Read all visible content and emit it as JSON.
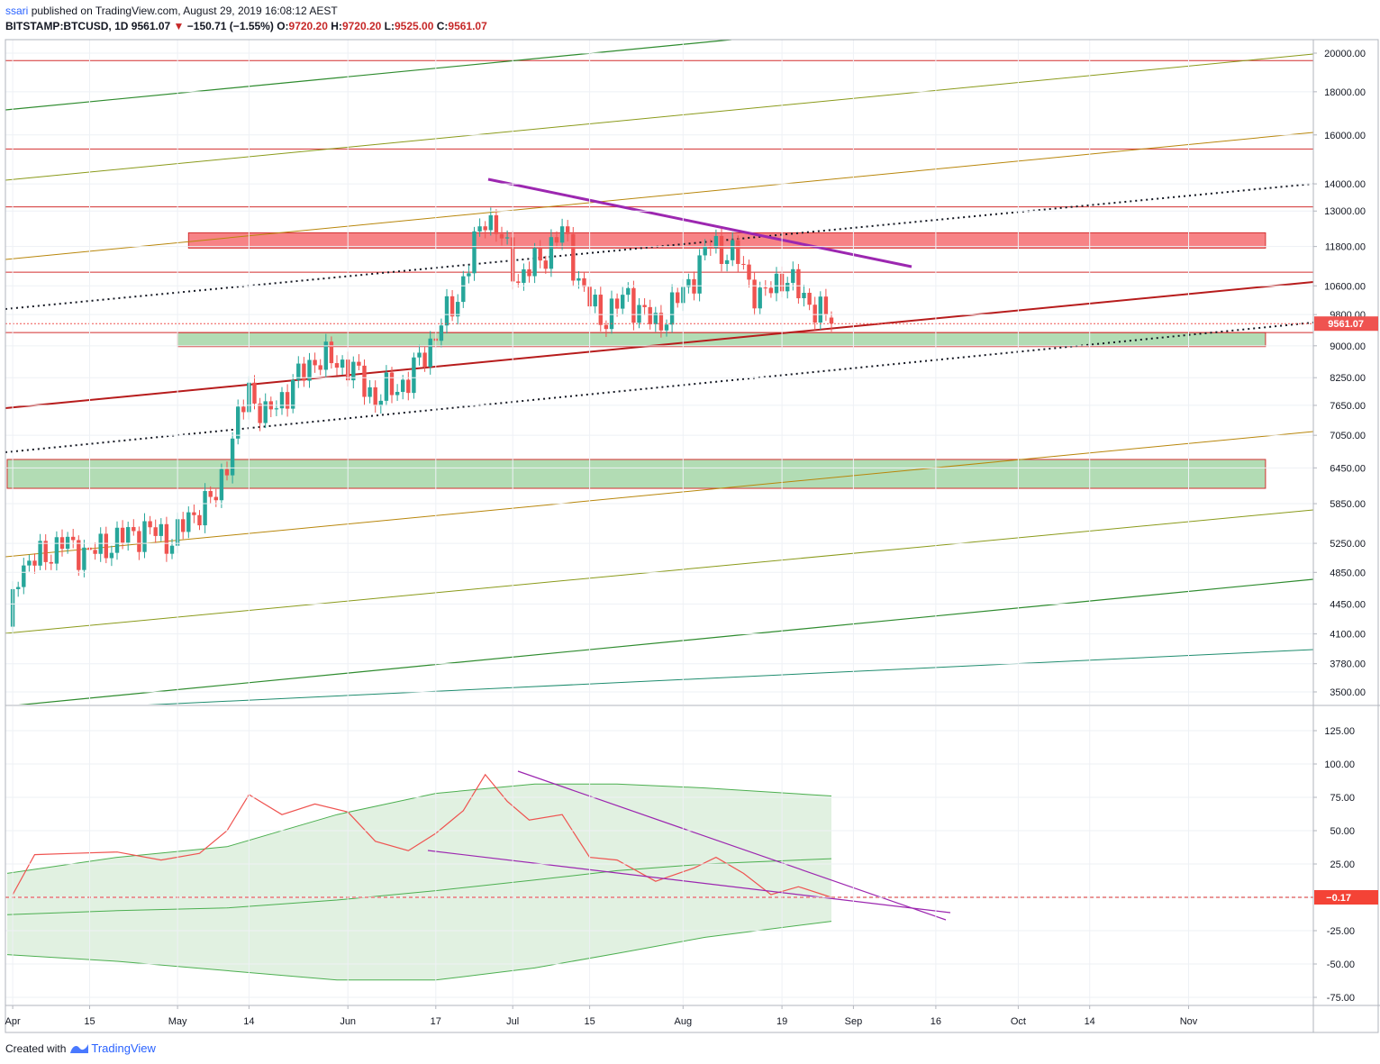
{
  "header": {
    "user": "ssari",
    "published": "published on TradingView.com, August 29, 2019 16:08:12 AEST",
    "symbol": "BITSTAMP:BTCUSD, 1D",
    "last": "9561.07",
    "change": "−150.71 (−1.55%)",
    "open_label": "O:",
    "open": "9720.20",
    "high_label": "H:",
    "high": "9720.20",
    "low_label": "L:",
    "low": "9525.00",
    "close_label": "C:",
    "close": "9561.07"
  },
  "footer": {
    "created_with": "Created with",
    "brand": "TradingView"
  },
  "colors": {
    "up": "#26a69a",
    "down": "#ef5350",
    "resistance_line": "#d32f2f",
    "zone_red": "#f77c80",
    "zone_green": "#a5d6a7",
    "trend_purple": "#9c27b0",
    "rsi_line": "#ef5350",
    "band": "#c8e6c9",
    "band_line": "#4caf50"
  },
  "chart_data": [
    {
      "type": "candlestick",
      "title": "BITSTAMP:BTCUSD, 1D",
      "yscale": "log",
      "ylim": [
        3300,
        21000
      ],
      "y_ticks": [
        "20000.00",
        "18000.00",
        "16000.00",
        "14000.00",
        "13000.00",
        "11800.00",
        "10600.00",
        "9800.00",
        "9000.00",
        "8250.00",
        "7650.00",
        "7050.00",
        "6450.00",
        "5850.00",
        "5250.00",
        "4850.00",
        "4450.00",
        "4100.00",
        "3780.00",
        "3500.00"
      ],
      "x_ticks": [
        "Apr",
        "15",
        "May",
        "14",
        "Jun",
        "17",
        "Jul",
        "15",
        "Aug",
        "19",
        "Sep",
        "16",
        "Oct",
        "14",
        "Nov"
      ],
      "x_tick_dates": [
        "2019-04-01",
        "2019-04-15",
        "2019-05-01",
        "2019-05-14",
        "2019-06-01",
        "2019-06-17",
        "2019-07-01",
        "2019-07-15",
        "2019-08-01",
        "2019-08-19",
        "2019-09-01",
        "2019-09-16",
        "2019-10-01",
        "2019-10-14",
        "2019-11-01"
      ],
      "last_price_label": "9561.07",
      "approx_daily_closes": [
        {
          "date": "2019-03-31",
          "close": 4100
        },
        {
          "date": "2019-04-02",
          "close": 4900
        },
        {
          "date": "2019-04-05",
          "close": 5000
        },
        {
          "date": "2019-04-10",
          "close": 5250
        },
        {
          "date": "2019-04-15",
          "close": 5100
        },
        {
          "date": "2019-04-20",
          "close": 5300
        },
        {
          "date": "2019-04-25",
          "close": 5450
        },
        {
          "date": "2019-04-30",
          "close": 5300
        },
        {
          "date": "2019-05-05",
          "close": 5800
        },
        {
          "date": "2019-05-08",
          "close": 5950
        },
        {
          "date": "2019-05-11",
          "close": 7000
        },
        {
          "date": "2019-05-14",
          "close": 8000
        },
        {
          "date": "2019-05-17",
          "close": 7400
        },
        {
          "date": "2019-05-21",
          "close": 7950
        },
        {
          "date": "2019-05-26",
          "close": 8700
        },
        {
          "date": "2019-06-01",
          "close": 8550
        },
        {
          "date": "2019-06-06",
          "close": 7800
        },
        {
          "date": "2019-06-12",
          "close": 8200
        },
        {
          "date": "2019-06-17",
          "close": 9300
        },
        {
          "date": "2019-06-21",
          "close": 10300
        },
        {
          "date": "2019-06-26",
          "close": 12900
        },
        {
          "date": "2019-06-28",
          "close": 12400
        },
        {
          "date": "2019-07-02",
          "close": 10800
        },
        {
          "date": "2019-07-06",
          "close": 11400
        },
        {
          "date": "2019-07-10",
          "close": 12300
        },
        {
          "date": "2019-07-14",
          "close": 10400
        },
        {
          "date": "2019-07-17",
          "close": 9700
        },
        {
          "date": "2019-07-22",
          "close": 10300
        },
        {
          "date": "2019-07-27",
          "close": 9500
        },
        {
          "date": "2019-08-01",
          "close": 10400
        },
        {
          "date": "2019-08-06",
          "close": 11900
        },
        {
          "date": "2019-08-11",
          "close": 11400
        },
        {
          "date": "2019-08-15",
          "close": 10200
        },
        {
          "date": "2019-08-19",
          "close": 10900
        },
        {
          "date": "2019-08-23",
          "close": 10300
        },
        {
          "date": "2019-08-28",
          "close": 9561
        }
      ],
      "horizontal_levels": [
        19600,
        15400,
        13150,
        11000,
        9330
      ],
      "zones": [
        {
          "color": "red",
          "from_date": "2019-05-03",
          "to_date": "2019-11-15",
          "low": 11750,
          "high": 12250
        },
        {
          "color": "green",
          "from_date": "2019-05-01",
          "to_date": "2019-11-15",
          "low": 8980,
          "high": 9330
        },
        {
          "color": "green",
          "from_date": "2019-03-31",
          "to_date": "2019-11-15",
          "low": 6100,
          "high": 6600
        }
      ]
    },
    {
      "type": "line",
      "title": "",
      "ylim": [
        -80,
        140
      ],
      "y_ticks": [
        "125.00",
        "100.00",
        "75.00",
        "50.00",
        "25.00",
        "0.00",
        "-25.00",
        "-50.00",
        "-75.00"
      ],
      "last_value_label": "−0.17",
      "series": [
        {
          "values_by_date": [
            {
              "date": "2019-04-01",
              "value": 2
            },
            {
              "date": "2019-04-05",
              "value": 32
            },
            {
              "date": "2019-04-12",
              "value": 33
            },
            {
              "date": "2019-04-20",
              "value": 34
            },
            {
              "date": "2019-04-28",
              "value": 28
            },
            {
              "date": "2019-05-05",
              "value": 33
            },
            {
              "date": "2019-05-10",
              "value": 50
            },
            {
              "date": "2019-05-14",
              "value": 77
            },
            {
              "date": "2019-05-20",
              "value": 62
            },
            {
              "date": "2019-05-26",
              "value": 70
            },
            {
              "date": "2019-06-01",
              "value": 64
            },
            {
              "date": "2019-06-06",
              "value": 42
            },
            {
              "date": "2019-06-12",
              "value": 35
            },
            {
              "date": "2019-06-17",
              "value": 48
            },
            {
              "date": "2019-06-22",
              "value": 65
            },
            {
              "date": "2019-06-26",
              "value": 92
            },
            {
              "date": "2019-06-30",
              "value": 72
            },
            {
              "date": "2019-07-04",
              "value": 58
            },
            {
              "date": "2019-07-10",
              "value": 62
            },
            {
              "date": "2019-07-15",
              "value": 30
            },
            {
              "date": "2019-07-20",
              "value": 28
            },
            {
              "date": "2019-07-27",
              "value": 12
            },
            {
              "date": "2019-08-03",
              "value": 22
            },
            {
              "date": "2019-08-07",
              "value": 30
            },
            {
              "date": "2019-08-12",
              "value": 18
            },
            {
              "date": "2019-08-17",
              "value": 2
            },
            {
              "date": "2019-08-22",
              "value": 8
            },
            {
              "date": "2019-08-28",
              "value": 0
            }
          ]
        }
      ]
    }
  ]
}
